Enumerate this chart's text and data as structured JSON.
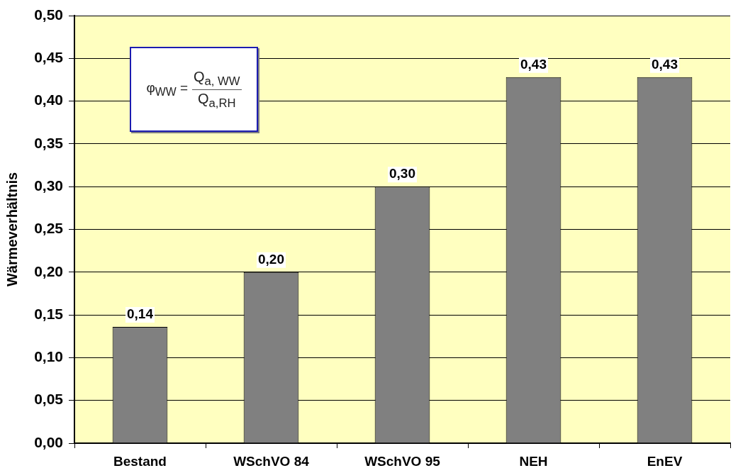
{
  "chart_data": {
    "type": "bar",
    "categories": [
      "Bestand",
      "WSchVO 84",
      "WSchVO 95",
      "NEH",
      "EnEV"
    ],
    "values": [
      0.136,
      0.2,
      0.3,
      0.428,
      0.428
    ],
    "value_labels": [
      "0,14",
      "0,20",
      "0,30",
      "0,43",
      "0,43"
    ],
    "color": "#808080",
    "ylabel": "Wärmeverhältnis",
    "ylim": [
      0,
      0.5
    ],
    "yticks": [
      {
        "value": 0,
        "label": "0,00"
      },
      {
        "value": 0.05,
        "label": "0,05"
      },
      {
        "value": 0.1,
        "label": "0,10"
      },
      {
        "value": 0.15,
        "label": "0,15"
      },
      {
        "value": 0.2,
        "label": "0,20"
      },
      {
        "value": 0.25,
        "label": "0,25"
      },
      {
        "value": 0.3,
        "label": "0,30"
      },
      {
        "value": 0.35,
        "label": "0,35"
      },
      {
        "value": 0.4,
        "label": "0,40"
      },
      {
        "value": 0.45,
        "label": "0,45"
      },
      {
        "value": 0.5,
        "label": "0,50"
      }
    ],
    "grid": "y",
    "annotations": [
      "φ$_{WW}$ =",
      "Q$_{a, WW}$",
      "Q$_{a,RH}$"
    ]
  }
}
